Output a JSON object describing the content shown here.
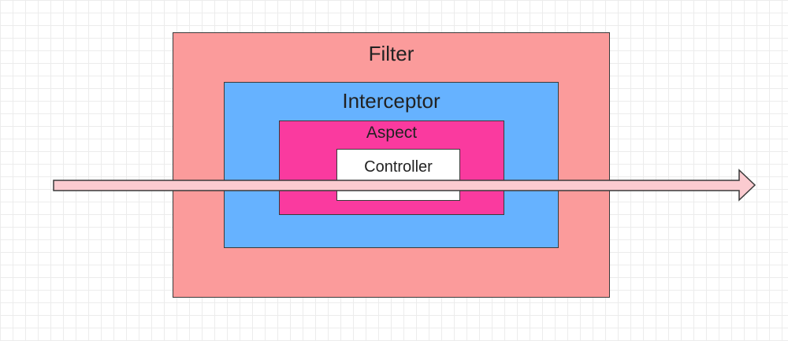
{
  "colors": {
    "filter": "#fb9b9b",
    "interceptor": "#66b2ff",
    "aspect": "#fa3a9f",
    "controller": "#ffffff",
    "arrow_fill": "#fbcbd0",
    "outline": "#3a3a3a"
  },
  "layers": {
    "filter": {
      "label": "Filter"
    },
    "interceptor": {
      "label": "Interceptor"
    },
    "aspect": {
      "label": "Aspect"
    },
    "controller": {
      "label": "Controller"
    }
  }
}
